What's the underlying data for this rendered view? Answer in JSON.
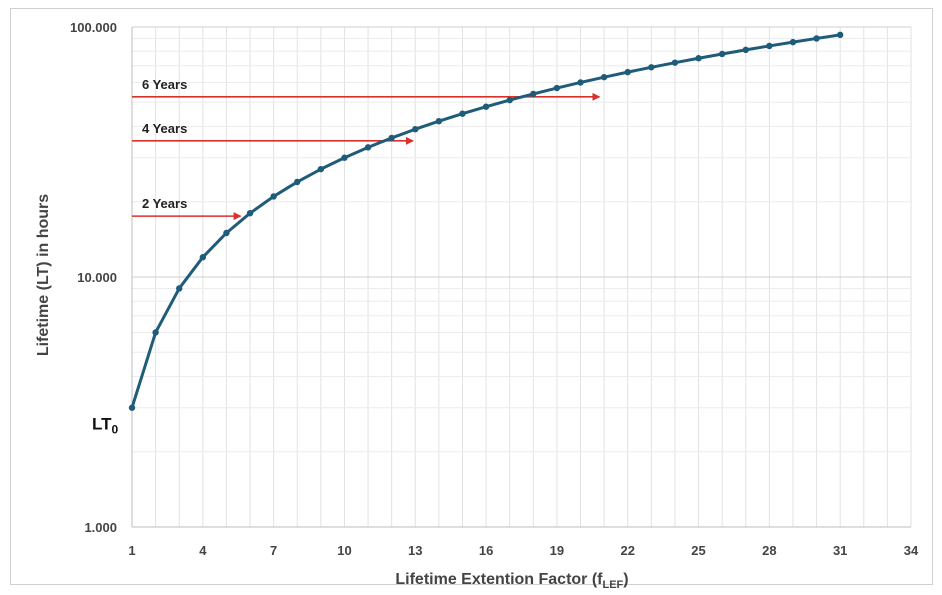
{
  "chart_data": {
    "type": "line",
    "title": "",
    "xlabel": "Lifetime Extention Factor (f",
    "xlabel_sub": "LEF",
    "xlabel_close": ")",
    "ylabel": "Lifetime (LT) in hours",
    "y_scale": "log",
    "xlim": [
      1,
      34
    ],
    "ylim": [
      1000,
      100000
    ],
    "x_ticks": [
      1,
      4,
      7,
      10,
      13,
      16,
      19,
      22,
      25,
      28,
      31,
      34
    ],
    "y_ticks": [
      {
        "value": 1000,
        "label": "1.000"
      },
      {
        "value": 10000,
        "label": "10.000"
      },
      {
        "value": 100000,
        "label": "100.000"
      }
    ],
    "grid": true,
    "series": [
      {
        "color": "#1f5c7a",
        "x": [
          1,
          2,
          3,
          4,
          5,
          6,
          7,
          8,
          9,
          10,
          11,
          12,
          13,
          14,
          15,
          16,
          17,
          18,
          19,
          20,
          21,
          22,
          23,
          24,
          25,
          26,
          27,
          28,
          29,
          30,
          31
        ],
        "y": [
          3000,
          6000,
          9000,
          12000,
          15000,
          18000,
          21000,
          24000,
          27000,
          30000,
          33000,
          36000,
          39000,
          42000,
          45000,
          48000,
          51000,
          54000,
          57000,
          60000,
          63000,
          66000,
          69000,
          72000,
          75000,
          78000,
          81000,
          84000,
          87000,
          90000,
          93000
        ]
      }
    ],
    "annotations": [
      {
        "text": "2 Years",
        "y": 17520,
        "x_end": 5.6,
        "color": "#d9312b"
      },
      {
        "text": "4 Years",
        "y": 35040,
        "x_end": 12.9,
        "color": "#d9312b"
      },
      {
        "text": "6 Years",
        "y": 52560,
        "x_end": 20.8,
        "color": "#d9312b"
      }
    ],
    "baseline_label": {
      "text": "LT",
      "sub": "0",
      "y": 3000
    }
  }
}
